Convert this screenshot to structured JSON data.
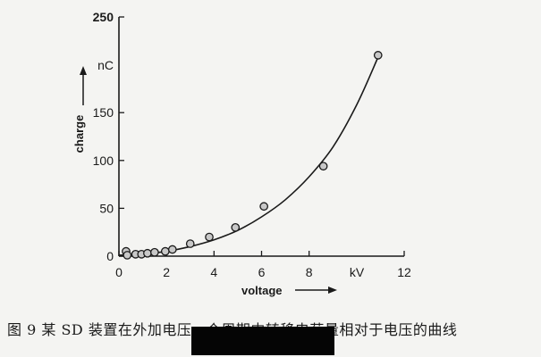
{
  "chart_data": {
    "type": "scatter",
    "xlabel": "voltage",
    "ylabel": "charge",
    "x_unit": "kV",
    "y_unit": "nC",
    "xlim": [
      0,
      12
    ],
    "ylim": [
      0,
      250
    ],
    "x_ticks": [
      0,
      2,
      4,
      6,
      8,
      12
    ],
    "y_ticks": [
      0,
      50,
      100,
      150,
      250
    ],
    "grid": false,
    "series": [
      {
        "marker": "circle",
        "points": [
          {
            "x": 0.3,
            "y": 5
          },
          {
            "x": 0.35,
            "y": 1
          },
          {
            "x": 0.7,
            "y": 2
          },
          {
            "x": 0.95,
            "y": 2
          },
          {
            "x": 1.2,
            "y": 3
          },
          {
            "x": 1.5,
            "y": 4
          },
          {
            "x": 1.95,
            "y": 5
          },
          {
            "x": 2.25,
            "y": 7
          },
          {
            "x": 3.0,
            "y": 13
          },
          {
            "x": 3.8,
            "y": 20
          },
          {
            "x": 4.9,
            "y": 30
          },
          {
            "x": 6.1,
            "y": 52
          },
          {
            "x": 8.6,
            "y": 94
          },
          {
            "x": 10.9,
            "y": 210
          }
        ]
      }
    ],
    "fit_curve": {
      "x": [
        0,
        1,
        2,
        3,
        4,
        5,
        6,
        7,
        8,
        9,
        10,
        10.9
      ],
      "y": [
        1,
        2,
        5,
        10,
        17,
        27,
        41,
        59,
        83,
        114,
        158,
        208
      ]
    }
  },
  "caption": "图 9   某 SD 装置在外加电压一个周期内转移电荷量相对于电压的曲线",
  "colors": {
    "ink": "#1a1a1a",
    "marker_fill": "#c8c8c8",
    "background": "#f4f4f2",
    "redaction": "#050505"
  }
}
